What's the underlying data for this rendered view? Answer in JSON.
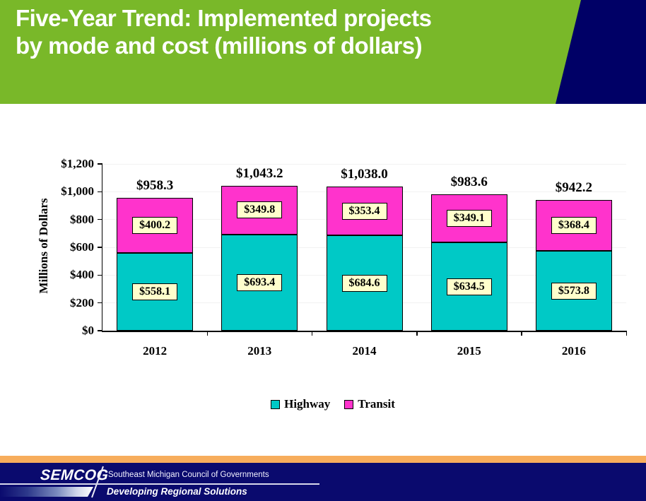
{
  "slide_title": {
    "line1": "Five-Year Trend: Implemented projects",
    "line2": "by mode and cost (millions of dollars)"
  },
  "chart_data": {
    "type": "bar",
    "stacked": true,
    "categories": [
      "2012",
      "2013",
      "2014",
      "2015",
      "2016"
    ],
    "series": [
      {
        "name": "Highway",
        "color": "#00C9C6",
        "values": [
          558.1,
          693.4,
          684.6,
          634.5,
          573.8
        ],
        "value_labels": [
          "$558.1",
          "$693.4",
          "$684.6",
          "$634.5",
          "$573.8"
        ]
      },
      {
        "name": "Transit",
        "color": "#FF33CC",
        "values": [
          400.2,
          349.8,
          353.4,
          349.1,
          368.4
        ],
        "value_labels": [
          "$400.2",
          "$349.8",
          "$353.4",
          "$349.1",
          "$368.4"
        ]
      }
    ],
    "totals": [
      958.3,
      1043.2,
      1038.0,
      983.6,
      942.2
    ],
    "total_labels": [
      "$958.3",
      "$1,043.2",
      "$1,038.0",
      "$983.6",
      "$942.2"
    ],
    "xlabel": "",
    "ylabel": "Millions of Dollars",
    "ylim": [
      0,
      1200
    ],
    "ytick_step": 200,
    "ytick_labels": [
      "$0",
      "$200",
      "$400",
      "$600",
      "$800",
      "$1,000",
      "$1,200"
    ],
    "grid": "horizontal-light",
    "legend_position": "bottom",
    "datalabel_box_bg": "#FFFFCC"
  },
  "footer": {
    "logo_text": "SEMCOG",
    "org_name": "Southeast Michigan Council of Governments",
    "tagline": "Developing Regional Solutions"
  },
  "colors": {
    "header_green": "#79B829",
    "accent_navy": "#000066",
    "footer_navy": "#0A0A6E",
    "orange_stripe": "#F7AD5C",
    "highway_teal": "#00C9C6",
    "transit_magenta": "#FF33CC",
    "label_box_yellow": "#FFFFCC",
    "title_text": "#FFFFFF"
  }
}
